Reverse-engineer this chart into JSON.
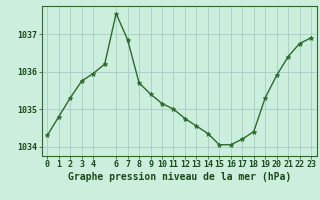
{
  "x": [
    0,
    1,
    2,
    3,
    4,
    5,
    6,
    7,
    8,
    9,
    10,
    11,
    12,
    13,
    14,
    15,
    16,
    17,
    18,
    19,
    20,
    21,
    22,
    23
  ],
  "y": [
    1034.3,
    1034.8,
    1035.3,
    1035.75,
    1035.95,
    1036.2,
    1037.55,
    1036.85,
    1035.7,
    1035.4,
    1035.15,
    1035.0,
    1034.75,
    1034.55,
    1034.35,
    1034.05,
    1034.05,
    1034.2,
    1034.4,
    1035.3,
    1035.9,
    1036.4,
    1036.75,
    1036.9
  ],
  "line_color": "#2d6a2d",
  "marker": "*",
  "marker_size": 3.5,
  "bg_color": "#cceedd",
  "grid_color": "#aacccc",
  "title": "Graphe pression niveau de la mer (hPa)",
  "ylim": [
    1033.75,
    1037.75
  ],
  "xlim": [
    -0.5,
    23.5
  ],
  "yticks": [
    1034,
    1035,
    1036,
    1037
  ],
  "xticks": [
    0,
    1,
    2,
    3,
    4,
    6,
    7,
    8,
    9,
    10,
    11,
    12,
    13,
    14,
    15,
    16,
    17,
    18,
    19,
    20,
    21,
    22,
    23
  ],
  "line_width": 1.0,
  "title_fontsize": 7.0,
  "tick_fontsize": 6.0,
  "title_color": "#1a4a1a",
  "tick_color": "#1a4a1a",
  "axis_color": "#2d6a2d"
}
